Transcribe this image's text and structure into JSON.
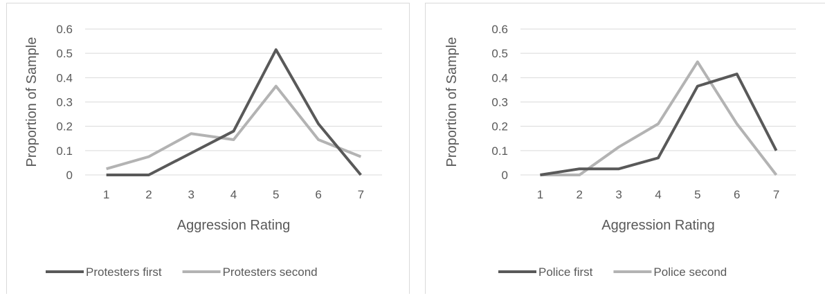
{
  "colors": {
    "first_series": "#595959",
    "second_series": "#b3b3b3",
    "gridline": "#d9d9d9",
    "text": "#595959"
  },
  "chart_data": [
    {
      "type": "line",
      "x": [
        1,
        2,
        3,
        4,
        5,
        6,
        7
      ],
      "xlabel": "Aggression Rating",
      "ylabel": "Proportion of Sample",
      "ylim": [
        0,
        0.6
      ],
      "yticks": [
        "0",
        "0.1",
        "0.2",
        "0.3",
        "0.4",
        "0.5",
        "0.6"
      ],
      "grid": true,
      "legend_position": "bottom",
      "series": [
        {
          "name": "Protesters first",
          "values": [
            0,
            0,
            0.09,
            0.18,
            0.515,
            0.21,
            0
          ]
        },
        {
          "name": "Protesters second",
          "values": [
            0.025,
            0.075,
            0.17,
            0.145,
            0.365,
            0.145,
            0.075
          ]
        }
      ]
    },
    {
      "type": "line",
      "x": [
        1,
        2,
        3,
        4,
        5,
        6,
        7
      ],
      "xlabel": "Aggression Rating",
      "ylabel": "Proportion of Sample",
      "ylim": [
        0,
        0.6
      ],
      "yticks": [
        "0",
        "0.1",
        "0.2",
        "0.3",
        "0.4",
        "0.5",
        "0.6"
      ],
      "grid": true,
      "legend_position": "bottom",
      "series": [
        {
          "name": "Police first",
          "values": [
            0,
            0.025,
            0.025,
            0.07,
            0.365,
            0.415,
            0.1
          ]
        },
        {
          "name": "Police second",
          "values": [
            0,
            0,
            0.115,
            0.21,
            0.465,
            0.21,
            0
          ]
        }
      ]
    }
  ]
}
